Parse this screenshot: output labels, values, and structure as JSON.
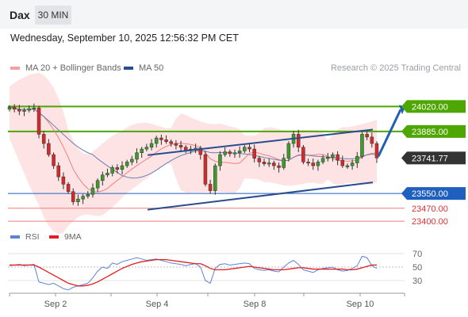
{
  "header": {
    "symbol": "Dax",
    "timeframe": "30 MIN"
  },
  "datetime": "Wednesday, September 10, 2025 12:56:32 PM CET",
  "legend": {
    "items": [
      {
        "label": "MA 20 + Bollinger Bands",
        "color": "#f08080"
      },
      {
        "label": "MA 50",
        "color": "#2a4d8f"
      }
    ],
    "research": "Research © 2025 Trading Central"
  },
  "rsi_legend": {
    "items": [
      {
        "label": "RSI",
        "color": "#5b84d6"
      },
      {
        "label": "9MA",
        "color": "#e02020"
      }
    ]
  },
  "chart_data": [
    {
      "type": "candlestick",
      "title": "Dax",
      "timeframe": "30 MIN",
      "x_ticks": [
        "Sep 2",
        "Sep 4",
        "Sep 8",
        "Sep 10"
      ],
      "ylim": [
        23375,
        24090
      ],
      "levels": [
        {
          "value": 24020.0,
          "label": "24020.00",
          "kind": "resistance",
          "color": "#4ea600"
        },
        {
          "value": 23885.0,
          "label": "23885.00",
          "kind": "resistance",
          "color": "#4ea600"
        },
        {
          "value": 23741.77,
          "label": "23741.77",
          "kind": "last",
          "color": "#333333"
        },
        {
          "value": 23550.0,
          "label": "23550.00",
          "kind": "pivot",
          "color": "#1f5fbf"
        },
        {
          "value": 23470.0,
          "label": "23470.00",
          "kind": "support",
          "color": "#f27d7d"
        },
        {
          "value": 23400.0,
          "label": "23400.00",
          "kind": "support",
          "color": "#f27d7d"
        }
      ],
      "closes": [
        24015,
        24005,
        23995,
        24000,
        24008,
        24012,
        23870,
        23820,
        23760,
        23700,
        23640,
        23600,
        23560,
        23505,
        23520,
        23535,
        23545,
        23580,
        23620,
        23650,
        23660,
        23690,
        23680,
        23700,
        23720,
        23735,
        23770,
        23790,
        23800,
        23820,
        23850,
        23840,
        23830,
        23820,
        23810,
        23800,
        23780,
        23790,
        23795,
        23760,
        23600,
        23565,
        23700,
        23760,
        23775,
        23765,
        23770,
        23780,
        23800,
        23790,
        23740,
        23720,
        23710,
        23715,
        23700,
        23690,
        23740,
        23820,
        23870,
        23800,
        23720,
        23715,
        23700,
        23720,
        23740,
        23745,
        23760,
        23730,
        23700,
        23700,
        23715,
        23750,
        23870,
        23855,
        23820,
        23741.77
      ],
      "trendlines": [
        {
          "name": "upper-channel",
          "from": {
            "index": 12,
            "value": 23800
          },
          "to": {
            "index": 75,
            "value": 23895
          }
        },
        {
          "name": "lower-channel",
          "from": {
            "index": 12,
            "value": 23505
          },
          "to": {
            "index": 75,
            "value": 23610
          }
        }
      ],
      "projection": {
        "from_value": 23741.77,
        "to_value": 24020.0
      }
    },
    {
      "type": "line",
      "title": "RSI",
      "y_ticks": [
        "70",
        "50",
        "30"
      ],
      "ylim": [
        10,
        85
      ],
      "series": [
        {
          "name": "RSI",
          "values": [
            52,
            53,
            54,
            52,
            53,
            54,
            28,
            26,
            24,
            26,
            22,
            18,
            16,
            20,
            22,
            24,
            26,
            34,
            44,
            50,
            48,
            56,
            54,
            58,
            60,
            62,
            64,
            62,
            60,
            61,
            62,
            60,
            58,
            56,
            55,
            54,
            52,
            54,
            55,
            50,
            30,
            26,
            48,
            54,
            55,
            53,
            54,
            55,
            56,
            55,
            48,
            46,
            45,
            46,
            44,
            43,
            50,
            56,
            60,
            54,
            46,
            44,
            42,
            46,
            48,
            49,
            50,
            46,
            44,
            45,
            48,
            52,
            66,
            64,
            52,
            48
          ]
        },
        {
          "name": "9MA",
          "values": [
            53,
            53,
            53,
            53,
            53,
            53,
            50,
            46,
            42,
            38,
            34,
            30,
            26,
            24,
            22,
            22,
            23,
            25,
            28,
            32,
            36,
            40,
            44,
            48,
            51,
            54,
            56,
            58,
            59,
            60,
            61,
            61,
            61,
            60,
            59,
            58,
            57,
            56,
            55,
            55,
            52,
            48,
            46,
            46,
            46,
            47,
            48,
            49,
            50,
            51,
            50,
            49,
            48,
            47,
            46,
            46,
            46,
            47,
            48,
            49,
            49,
            48,
            47,
            47,
            47,
            47,
            47,
            47,
            47,
            46,
            46,
            47,
            49,
            51,
            53,
            53
          ]
        }
      ]
    }
  ]
}
